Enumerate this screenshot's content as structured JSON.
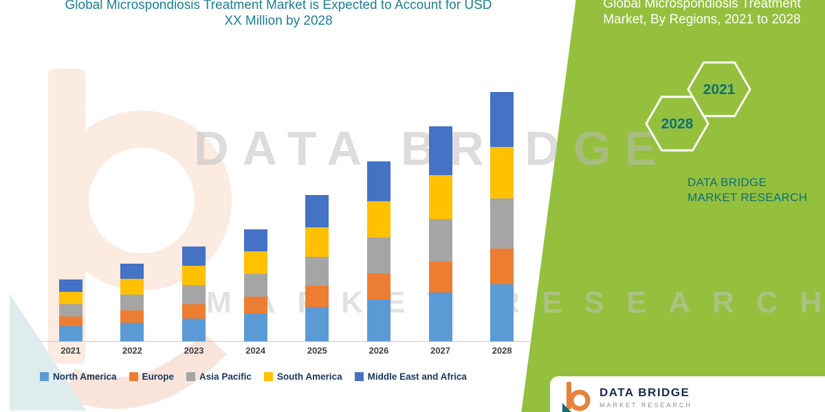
{
  "page": {
    "bg": "#FFFFFF",
    "accent_green": "#94C03E",
    "accent_teal": "#1A7F93"
  },
  "watermark": {
    "line1": "DATA BRIDGE",
    "line2": "MARKET RESEARCH"
  },
  "right_panel": {
    "title": "Global Microspondiosis Treatment Market, By Regions, 2021 to 2028",
    "hexagons": [
      "2028",
      "2021"
    ],
    "brand": "DATA BRIDGE MARKET RESEARCH"
  },
  "footer_logo": {
    "name": "DATA BRIDGE",
    "sub": "MARKET RESEARCH"
  },
  "chart_data": {
    "type": "bar",
    "stacked": true,
    "title": "Global Microspondiosis Treatment Market is Expected to Account for USD XX Million by 2028",
    "categories": [
      "2021",
      "2022",
      "2023",
      "2024",
      "2025",
      "2026",
      "2027",
      "2028"
    ],
    "series": [
      {
        "name": "North America",
        "color": "#5B9BD5",
        "values": [
          22,
          27,
          33,
          40,
          50,
          61,
          71,
          83
        ]
      },
      {
        "name": "Europe",
        "color": "#ED7D31",
        "values": [
          14,
          18,
          21,
          25,
          31,
          38,
          45,
          52
        ]
      },
      {
        "name": "Asia Pacific",
        "color": "#A5A5A5",
        "values": [
          18,
          23,
          28,
          33,
          42,
          52,
          62,
          73
        ]
      },
      {
        "name": "South America",
        "color": "#FFC000",
        "values": [
          18,
          23,
          28,
          33,
          43,
          53,
          64,
          75
        ]
      },
      {
        "name": "Middle East and Africa",
        "color": "#4472C4",
        "values": [
          18,
          22,
          28,
          32,
          47,
          58,
          71,
          80
        ]
      }
    ],
    "xlabel": "",
    "ylabel": "",
    "units": "USD XX Million (no numeric axis shown)",
    "ylim": [
      0,
      380
    ],
    "grid": false,
    "legend_position": "bottom"
  }
}
